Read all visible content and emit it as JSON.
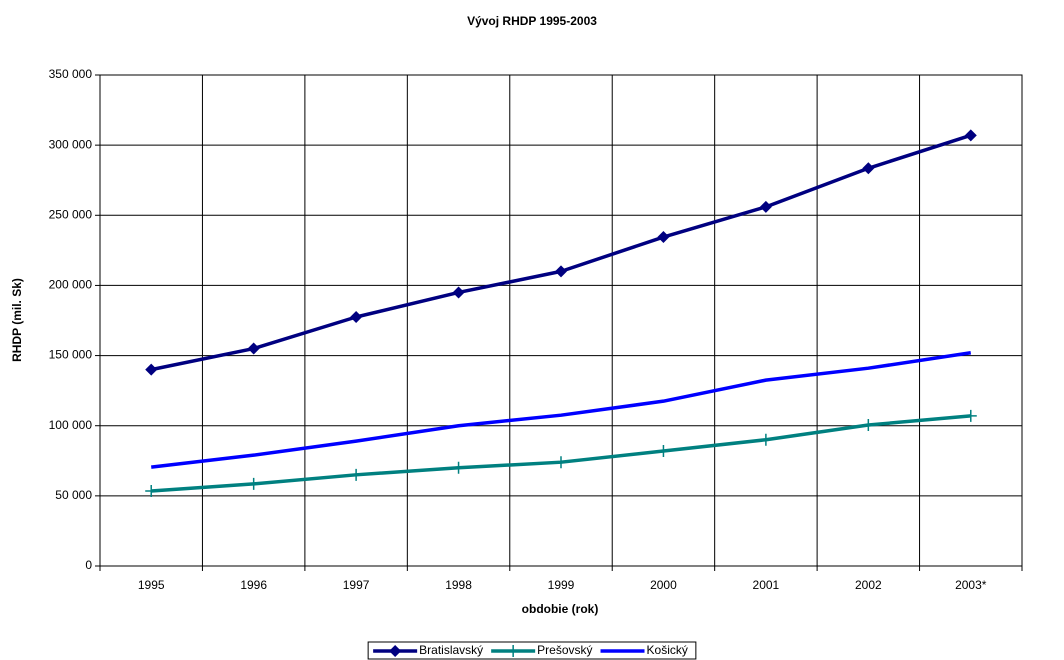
{
  "chart_data": {
    "type": "line",
    "title": "Vývoj RHDP 1995-2003",
    "x_label": "obdobie (rok)",
    "y_label": "RHDP (mil. Sk)",
    "categories": [
      "1995",
      "1996",
      "1997",
      "1998",
      "1999",
      "2000",
      "2001",
      "2002",
      "2003*"
    ],
    "series": [
      {
        "name": "Bratislavský",
        "color": "#000080",
        "marker": "diamond",
        "values": [
          140000,
          155000,
          177500,
          195000,
          210000,
          234500,
          256000,
          283500,
          307000
        ]
      },
      {
        "name": "Prešovský",
        "color": "#008080",
        "marker": "plus",
        "values": [
          53500,
          58500,
          65000,
          70000,
          74000,
          82000,
          90000,
          100500,
          107000
        ]
      },
      {
        "name": "Košický",
        "color": "#0000ff",
        "marker": "none",
        "values": [
          70500,
          79000,
          89000,
          100000,
          107500,
          117500,
          132500,
          141000,
          152000
        ]
      }
    ],
    "ylim": [
      0,
      350000
    ],
    "yticks": [
      0,
      {
        "value": 50000,
        "label": "50 000"
      },
      {
        "value": 100000,
        "label": "100 000"
      },
      {
        "value": 150000,
        "label": "150 000"
      },
      {
        "value": 200000,
        "label": "200 000"
      },
      {
        "value": 250000,
        "label": "250 000"
      },
      {
        "value": 300000,
        "label": "300 000"
      },
      {
        "value": 350000,
        "label": "350 000"
      }
    ],
    "grid": true,
    "legend": "bottom"
  }
}
